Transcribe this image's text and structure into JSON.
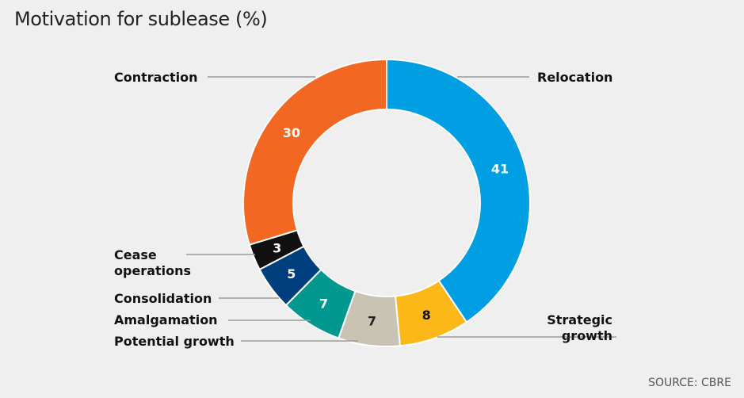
{
  "chart_data": {
    "type": "pie",
    "title": "Motivation for sublease (%)",
    "source": "SOURCE: CBRE",
    "categories": [
      "Relocation",
      "Strategic growth",
      "Potential growth",
      "Amalgamation",
      "Consolidation",
      "Cease operations",
      "Contraction"
    ],
    "values": [
      41,
      8,
      7,
      7,
      5,
      3,
      30
    ],
    "label_lines": [
      [
        "Relocation"
      ],
      [
        "Strategic",
        "growth"
      ],
      [
        "Potential growth"
      ],
      [
        "Amalgamation"
      ],
      [
        "Consolidation"
      ],
      [
        "Cease",
        "operations"
      ],
      [
        "Contraction"
      ]
    ],
    "colors": [
      "#009fe3",
      "#fbb818",
      "#c9c3b3",
      "#00988f",
      "#003f7d",
      "#111111",
      "#f26722"
    ],
    "value_label_colors": [
      "#ffffff",
      "#111111",
      "#222222",
      "#ffffff",
      "#ffffff",
      "#ffffff",
      "#ffffff"
    ],
    "donut": true,
    "legend": "none"
  }
}
